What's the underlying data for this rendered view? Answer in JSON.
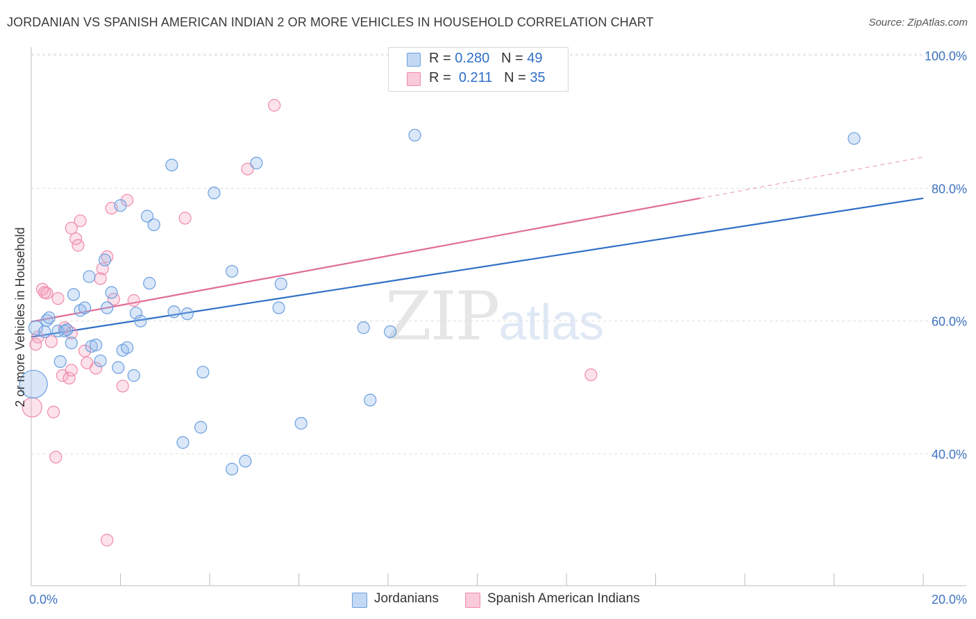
{
  "title": "JORDANIAN VS SPANISH AMERICAN INDIAN 2 OR MORE VEHICLES IN HOUSEHOLD CORRELATION CHART",
  "source": "Source: ZipAtlas.com",
  "watermark": {
    "zip": "ZIP",
    "atlas": "atlas"
  },
  "legend": {
    "jordanians": {
      "r_label": "R =",
      "r_value": "0.280",
      "n_label": "N =",
      "n_value": "49"
    },
    "spanish": {
      "r_label": "R =",
      "r_value": "0.211",
      "n_label": "N =",
      "n_value": "35"
    }
  },
  "chart_data": {
    "type": "scatter",
    "xlabel": "",
    "ylabel": "2 or more Vehicles in Household",
    "xlim": [
      0,
      20
    ],
    "ylim": [
      20,
      102
    ],
    "x_tick_labels": [
      "0.0%",
      "20.0%"
    ],
    "y_ticks": [
      40,
      60,
      80,
      100
    ],
    "y_tick_labels": [
      "40.0%",
      "60.0%",
      "80.0%",
      "100.0%"
    ],
    "grid": true,
    "colors": {
      "jordanians": "#6a9fe0",
      "spanish": "#f08aab",
      "jordanians_line": "#2f6fc6",
      "spanish_line": "#e06b94"
    },
    "series": [
      {
        "name": "Jordanians",
        "trend": {
          "x": [
            0,
            20
          ],
          "y": [
            57.6,
            78.5
          ]
        },
        "points": [
          {
            "x": 0.1,
            "y": 59.0,
            "r": 10
          },
          {
            "x": 0.05,
            "y": 50.5,
            "r": 20
          },
          {
            "x": 0.3,
            "y": 58.4
          },
          {
            "x": 0.35,
            "y": 60.1
          },
          {
            "x": 0.4,
            "y": 60.5
          },
          {
            "x": 0.6,
            "y": 58.5
          },
          {
            "x": 0.65,
            "y": 53.9
          },
          {
            "x": 0.75,
            "y": 58.5
          },
          {
            "x": 0.8,
            "y": 58.7
          },
          {
            "x": 0.9,
            "y": 56.7
          },
          {
            "x": 0.95,
            "y": 64.0
          },
          {
            "x": 1.1,
            "y": 61.6
          },
          {
            "x": 1.2,
            "y": 62.0
          },
          {
            "x": 1.3,
            "y": 66.7
          },
          {
            "x": 1.35,
            "y": 56.2
          },
          {
            "x": 1.45,
            "y": 56.4
          },
          {
            "x": 1.55,
            "y": 54.0
          },
          {
            "x": 1.65,
            "y": 69.2
          },
          {
            "x": 1.7,
            "y": 62.0
          },
          {
            "x": 1.8,
            "y": 64.3
          },
          {
            "x": 1.95,
            "y": 53.0
          },
          {
            "x": 2.0,
            "y": 77.4
          },
          {
            "x": 2.05,
            "y": 55.6
          },
          {
            "x": 2.15,
            "y": 56.0
          },
          {
            "x": 2.3,
            "y": 51.8
          },
          {
            "x": 2.35,
            "y": 61.2
          },
          {
            "x": 2.45,
            "y": 60.0
          },
          {
            "x": 2.6,
            "y": 75.8
          },
          {
            "x": 2.65,
            "y": 65.7
          },
          {
            "x": 2.75,
            "y": 74.5
          },
          {
            "x": 3.15,
            "y": 83.5
          },
          {
            "x": 3.2,
            "y": 61.4
          },
          {
            "x": 3.4,
            "y": 41.7
          },
          {
            "x": 3.5,
            "y": 61.1
          },
          {
            "x": 3.8,
            "y": 44.0
          },
          {
            "x": 3.85,
            "y": 52.3
          },
          {
            "x": 4.1,
            "y": 79.3
          },
          {
            "x": 4.5,
            "y": 37.7
          },
          {
            "x": 4.5,
            "y": 67.5
          },
          {
            "x": 4.8,
            "y": 38.9
          },
          {
            "x": 5.05,
            "y": 83.8
          },
          {
            "x": 5.55,
            "y": 62.0
          },
          {
            "x": 5.6,
            "y": 65.6
          },
          {
            "x": 6.05,
            "y": 44.6
          },
          {
            "x": 7.45,
            "y": 59.0
          },
          {
            "x": 7.6,
            "y": 48.1
          },
          {
            "x": 8.05,
            "y": 58.4
          },
          {
            "x": 8.6,
            "y": 88.0
          },
          {
            "x": 18.45,
            "y": 87.5
          }
        ]
      },
      {
        "name": "Spanish American Indians",
        "trend": {
          "x": [
            0,
            15
          ],
          "y": [
            59.9,
            78.5
          ]
        },
        "trend_ext": {
          "x": [
            15,
            20
          ],
          "y": [
            78.5,
            84.7
          ]
        },
        "points": [
          {
            "x": 0.02,
            "y": 47.0,
            "r": 14
          },
          {
            "x": 0.1,
            "y": 56.5
          },
          {
            "x": 0.15,
            "y": 57.6
          },
          {
            "x": 0.25,
            "y": 64.8
          },
          {
            "x": 0.3,
            "y": 64.3
          },
          {
            "x": 0.35,
            "y": 64.2
          },
          {
            "x": 0.45,
            "y": 56.9
          },
          {
            "x": 0.5,
            "y": 46.3
          },
          {
            "x": 0.55,
            "y": 39.5
          },
          {
            "x": 0.6,
            "y": 63.4
          },
          {
            "x": 0.7,
            "y": 51.8
          },
          {
            "x": 0.75,
            "y": 59.0
          },
          {
            "x": 0.85,
            "y": 51.4
          },
          {
            "x": 0.9,
            "y": 52.6
          },
          {
            "x": 0.9,
            "y": 58.2
          },
          {
            "x": 0.9,
            "y": 74.0
          },
          {
            "x": 1.0,
            "y": 72.4
          },
          {
            "x": 1.05,
            "y": 71.4
          },
          {
            "x": 1.1,
            "y": 75.1
          },
          {
            "x": 1.2,
            "y": 55.5
          },
          {
            "x": 1.25,
            "y": 53.7
          },
          {
            "x": 1.45,
            "y": 52.9
          },
          {
            "x": 1.55,
            "y": 66.4
          },
          {
            "x": 1.6,
            "y": 67.9
          },
          {
            "x": 1.7,
            "y": 27.0
          },
          {
            "x": 1.7,
            "y": 69.7
          },
          {
            "x": 1.8,
            "y": 77.0
          },
          {
            "x": 1.85,
            "y": 63.3
          },
          {
            "x": 2.05,
            "y": 50.2
          },
          {
            "x": 2.15,
            "y": 78.2
          },
          {
            "x": 2.3,
            "y": 63.1
          },
          {
            "x": 3.45,
            "y": 75.5
          },
          {
            "x": 4.85,
            "y": 82.9
          },
          {
            "x": 5.45,
            "y": 92.5
          },
          {
            "x": 12.55,
            "y": 51.9
          }
        ]
      }
    ]
  },
  "bottom_legend": {
    "jordanians": "Jordanians",
    "spanish": "Spanish American Indians"
  }
}
